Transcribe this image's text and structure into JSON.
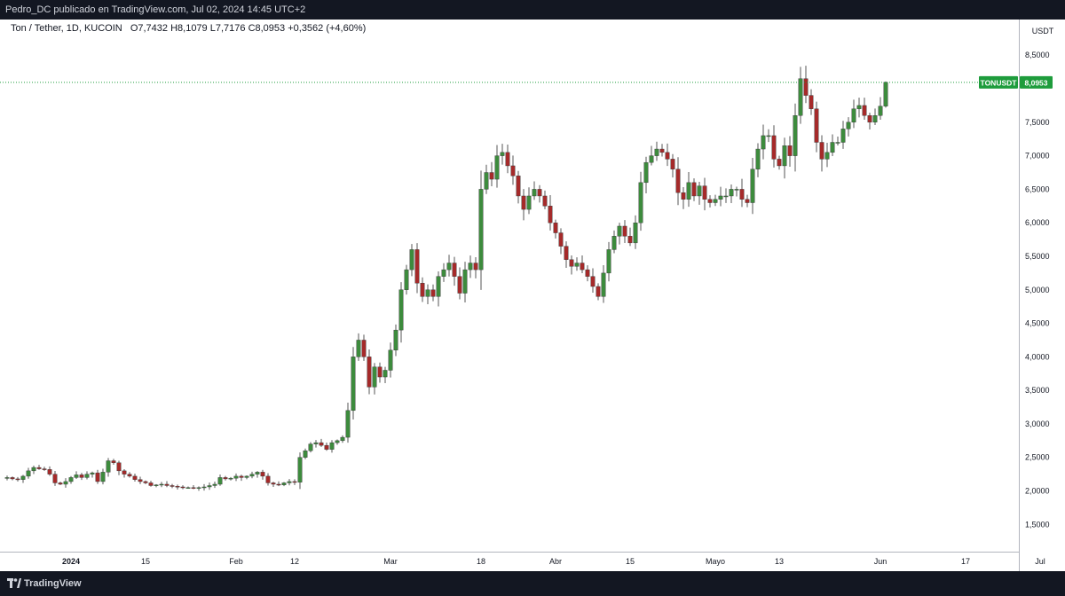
{
  "header": {
    "published": "Pedro_DC publicado en TradingView.com, Jul 02, 2024 14:45 UTC+2"
  },
  "legend": {
    "symbol": "Ton / Tether, 1D, KUCOIN",
    "open": "O7,7432",
    "high": "H8,1079",
    "low": "L7,7176",
    "close": "C8,0953",
    "change": "+0,3562 (+4,60%)"
  },
  "currency": "USDT",
  "price_tag": {
    "symbol": "TONUSDT",
    "price": "8,0953"
  },
  "footer": {
    "brand": "TradingView"
  },
  "colors": {
    "up": "#3d8b3d",
    "down": "#a52a2a",
    "tag": "#1e9c3c",
    "panel": "#131722"
  },
  "chart_data": {
    "type": "candlestick",
    "title": "Ton / Tether, 1D, KUCOIN",
    "ylim": [
      1.2,
      8.9
    ],
    "grid": false,
    "last_price": 8.0953,
    "y_ticks": [
      {
        "v": 1.5,
        "label": "1,5000"
      },
      {
        "v": 2.0,
        "label": "2,0000"
      },
      {
        "v": 2.5,
        "label": "2,5000"
      },
      {
        "v": 3.0,
        "label": "3,0000"
      },
      {
        "v": 3.5,
        "label": "3,5000"
      },
      {
        "v": 4.0,
        "label": "4,0000"
      },
      {
        "v": 4.5,
        "label": "4,5000"
      },
      {
        "v": 5.0,
        "label": "5,0000"
      },
      {
        "v": 5.5,
        "label": "5,5000"
      },
      {
        "v": 6.0,
        "label": "6,0000"
      },
      {
        "v": 6.5,
        "label": "6,5000"
      },
      {
        "v": 7.0,
        "label": "7,0000"
      },
      {
        "v": 7.5,
        "label": "7,5000"
      },
      {
        "v": 8.5,
        "label": "8,5000"
      }
    ],
    "x_ticks": [
      {
        "date": "2024-01-01",
        "label": "2024",
        "bold": true
      },
      {
        "date": "2024-01-15",
        "label": "15"
      },
      {
        "date": "2024-02-01",
        "label": "Feb"
      },
      {
        "date": "2024-02-12",
        "label": "12"
      },
      {
        "date": "2024-03-01",
        "label": "Mar"
      },
      {
        "date": "2024-03-18",
        "label": "18"
      },
      {
        "date": "2024-04-01",
        "label": "Abr"
      },
      {
        "date": "2024-04-15",
        "label": "15"
      },
      {
        "date": "2024-05-01",
        "label": "Mayo"
      },
      {
        "date": "2024-05-13",
        "label": "13"
      },
      {
        "date": "2024-06-01",
        "label": "Jun"
      },
      {
        "date": "2024-06-17",
        "label": "17"
      },
      {
        "date": "2024-07-01",
        "label": "Jul"
      }
    ],
    "first_date": "2023-12-20",
    "closes": [
      2.2,
      2.18,
      2.17,
      2.22,
      2.3,
      2.35,
      2.33,
      2.32,
      2.25,
      2.12,
      2.1,
      2.14,
      2.2,
      2.24,
      2.2,
      2.25,
      2.27,
      2.14,
      2.28,
      2.45,
      2.42,
      2.3,
      2.25,
      2.22,
      2.17,
      2.14,
      2.12,
      2.08,
      2.09,
      2.1,
      2.08,
      2.07,
      2.06,
      2.05,
      2.05,
      2.04,
      2.05,
      2.06,
      2.08,
      2.1,
      2.2,
      2.18,
      2.19,
      2.22,
      2.2,
      2.22,
      2.25,
      2.28,
      2.22,
      2.12,
      2.1,
      2.09,
      2.12,
      2.14,
      2.13,
      2.5,
      2.6,
      2.7,
      2.72,
      2.68,
      2.62,
      2.72,
      2.75,
      2.8,
      3.2,
      4.0,
      4.25,
      4.0,
      3.55,
      3.85,
      3.7,
      3.8,
      4.1,
      4.4,
      5.0,
      5.3,
      5.6,
      5.1,
      4.9,
      5.0,
      4.9,
      5.2,
      5.3,
      5.4,
      5.2,
      4.95,
      5.3,
      5.4,
      5.3,
      6.5,
      6.75,
      6.65,
      7.0,
      7.05,
      6.85,
      6.7,
      6.4,
      6.2,
      6.4,
      6.5,
      6.4,
      6.25,
      6.0,
      5.85,
      5.65,
      5.45,
      5.35,
      5.4,
      5.3,
      5.2,
      5.05,
      4.9,
      5.25,
      5.6,
      5.8,
      5.95,
      5.8,
      5.7,
      6.0,
      6.6,
      6.9,
      7.0,
      7.1,
      7.05,
      6.95,
      6.8,
      6.45,
      6.35,
      6.6,
      6.4,
      6.55,
      6.35,
      6.3,
      6.35,
      6.4,
      6.4,
      6.5,
      6.5,
      6.35,
      6.3,
      6.8,
      7.1,
      7.3,
      7.3,
      6.95,
      6.85,
      7.15,
      7.0,
      7.6,
      8.15,
      7.9,
      7.7,
      7.2,
      6.95,
      7.05,
      7.2,
      7.2,
      7.4,
      7.5,
      7.7,
      7.75,
      7.6,
      7.5,
      7.6,
      7.74,
      8.0953
    ]
  }
}
